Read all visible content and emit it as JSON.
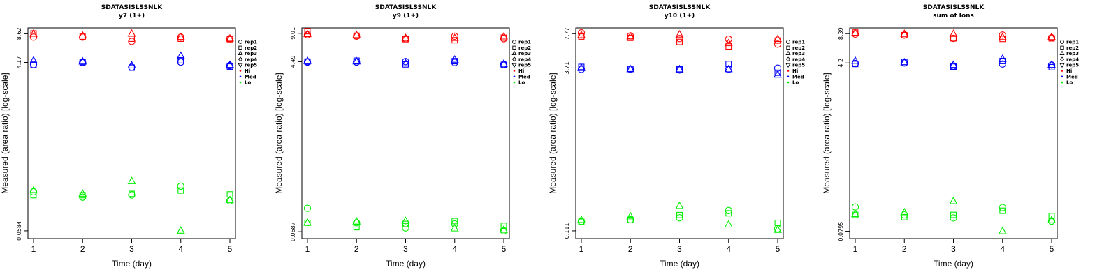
{
  "chart_data": [
    {
      "type": "scatter",
      "title": "SDATASISLSSNLK",
      "subtitle": "y7 (1+)",
      "xlabel": "Time (day)",
      "ylabel": "Measured (area ratio) [log-scale]",
      "x_ticks": [
        "1",
        "2",
        "3",
        "4",
        "5"
      ],
      "y_ticks": [
        0.0584,
        4.17,
        8.62
      ],
      "y_tick_labels": [
        "0.0584",
        "4.17",
        "8.62"
      ],
      "ylim": [
        0.048,
        10.0
      ],
      "log_scale_y": true,
      "legend_position": "right",
      "legend": [
        "rep1",
        "rep2",
        "rep3",
        "rep4",
        "rep5",
        "Hi",
        "Med",
        "Lo"
      ],
      "colors": {
        "Hi": "#ff0000",
        "Med": "#0000ff",
        "Lo": "#00ee00"
      },
      "markers": {
        "rep1": "circle",
        "rep2": "square",
        "rep3": "triangle",
        "rep4": "diamond",
        "rep5": "triangle-down"
      },
      "series": [
        {
          "level": "Hi",
          "rep": "rep1",
          "x": [
            1,
            2,
            3,
            4,
            5
          ],
          "y": [
            7.9,
            7.9,
            7.1,
            7.9,
            7.6
          ]
        },
        {
          "level": "Hi",
          "rep": "rep2",
          "x": [
            1,
            2,
            3,
            4,
            5
          ],
          "y": [
            8.7,
            8.0,
            7.6,
            7.6,
            7.5
          ]
        },
        {
          "level": "Hi",
          "rep": "rep3",
          "x": [
            1,
            2,
            3,
            4,
            5
          ],
          "y": [
            8.6,
            8.2,
            8.6,
            7.9,
            7.6
          ]
        },
        {
          "level": "Med",
          "rep": "rep1",
          "x": [
            1,
            2,
            3,
            4,
            5
          ],
          "y": [
            3.95,
            4.15,
            3.7,
            4.2,
            3.85
          ]
        },
        {
          "level": "Med",
          "rep": "rep2",
          "x": [
            1,
            2,
            3,
            4,
            5
          ],
          "y": [
            3.9,
            4.2,
            3.65,
            4.4,
            3.75
          ]
        },
        {
          "level": "Med",
          "rep": "rep3",
          "x": [
            1,
            2,
            3,
            4,
            5
          ],
          "y": [
            4.35,
            4.25,
            3.85,
            4.9,
            3.9
          ]
        },
        {
          "level": "Lo",
          "rep": "rep1",
          "x": [
            1,
            2,
            3,
            4,
            5
          ],
          "y": [
            0.157,
            0.137,
            0.145,
            0.181,
            0.125
          ]
        },
        {
          "level": "Lo",
          "rep": "rep2",
          "x": [
            1,
            2,
            3,
            4,
            5
          ],
          "y": [
            0.144,
            0.144,
            0.149,
            0.162,
            0.147
          ]
        },
        {
          "level": "Lo",
          "rep": "rep3",
          "x": [
            1,
            2,
            3,
            4,
            5
          ],
          "y": [
            0.162,
            0.149,
            0.205,
            0.0584,
            0.127
          ]
        }
      ]
    },
    {
      "type": "scatter",
      "title": "SDATASISLSSNLK",
      "subtitle": "y9 (1+)",
      "xlabel": "Time (day)",
      "ylabel": "Measured (area ratio) [log-scale]",
      "x_ticks": [
        "1",
        "2",
        "3",
        "4",
        "5"
      ],
      "y_ticks": [
        0.0687,
        4.49,
        9.01
      ],
      "y_tick_labels": [
        "0.0687",
        "4.49",
        "9.01"
      ],
      "ylim": [
        0.058,
        10.3
      ],
      "log_scale_y": true,
      "legend_position": "right",
      "legend": [
        "rep1",
        "rep2",
        "rep3",
        "rep4",
        "rep5",
        "Hi",
        "Med",
        "Lo"
      ],
      "colors": {
        "Hi": "#ff0000",
        "Med": "#0000ff",
        "Lo": "#00ee00"
      },
      "markers": {
        "rep1": "circle",
        "rep2": "square",
        "rep3": "triangle",
        "rep4": "diamond",
        "rep5": "triangle-down"
      },
      "series": [
        {
          "level": "Hi",
          "rep": "rep1",
          "x": [
            1,
            2,
            3,
            4,
            5
          ],
          "y": [
            8.7,
            8.4,
            7.9,
            8.4,
            7.9
          ]
        },
        {
          "level": "Hi",
          "rep": "rep2",
          "x": [
            1,
            2,
            3,
            4,
            5
          ],
          "y": [
            9.5,
            8.5,
            7.8,
            7.6,
            8.1
          ]
        },
        {
          "level": "Hi",
          "rep": "rep3",
          "x": [
            1,
            2,
            3,
            4,
            5
          ],
          "y": [
            8.8,
            8.6,
            8.0,
            8.0,
            8.3
          ]
        },
        {
          "level": "Med",
          "rep": "rep1",
          "x": [
            1,
            2,
            3,
            4,
            5
          ],
          "y": [
            4.45,
            4.45,
            4.5,
            4.4,
            4.2
          ]
        },
        {
          "level": "Med",
          "rep": "rep2",
          "x": [
            1,
            2,
            3,
            4,
            5
          ],
          "y": [
            4.5,
            4.6,
            4.2,
            4.55,
            4.15
          ]
        },
        {
          "level": "Med",
          "rep": "rep3",
          "x": [
            1,
            2,
            3,
            4,
            5
          ],
          "y": [
            4.55,
            4.5,
            4.3,
            4.7,
            4.25
          ]
        },
        {
          "level": "Lo",
          "rep": "rep1",
          "x": [
            1,
            2,
            3,
            4,
            5
          ],
          "y": [
            0.122,
            0.0855,
            0.0754,
            0.0831,
            0.0703
          ]
        },
        {
          "level": "Lo",
          "rep": "rep2",
          "x": [
            1,
            2,
            3,
            4,
            5
          ],
          "y": [
            0.0855,
            0.0767,
            0.0831,
            0.0891,
            0.0794
          ]
        },
        {
          "level": "Lo",
          "rep": "rep3",
          "x": [
            1,
            2,
            3,
            4,
            5
          ],
          "y": [
            0.0855,
            0.0879,
            0.0891,
            0.0741,
            0.0716
          ]
        }
      ]
    },
    {
      "type": "scatter",
      "title": "SDATASISLSSNLK",
      "subtitle": "y10 (1+)",
      "xlabel": "Time (day)",
      "ylabel": "Measured (area ratio) [log-scale]",
      "x_ticks": [
        "1",
        "2",
        "3",
        "4",
        "5"
      ],
      "y_ticks": [
        0.111,
        3.71,
        7.77
      ],
      "y_tick_labels": [
        "0.111",
        "3.71",
        "7.77"
      ],
      "ylim": [
        0.094,
        8.8
      ],
      "log_scale_y": true,
      "legend_position": "right",
      "legend": [
        "rep1",
        "rep2",
        "rep3",
        "rep4",
        "rep5",
        "Hi",
        "Med",
        "Lo"
      ],
      "colors": {
        "Hi": "#ff0000",
        "Med": "#0000ff",
        "Lo": "#00ee00"
      },
      "markers": {
        "rep1": "circle",
        "rep2": "square",
        "rep3": "triangle",
        "rep4": "diamond",
        "rep5": "triangle-down"
      },
      "series": [
        {
          "level": "Hi",
          "rep": "rep1",
          "x": [
            1,
            2,
            3,
            4,
            5
          ],
          "y": [
            7.9,
            7.4,
            7.0,
            6.9,
            6.2
          ]
        },
        {
          "level": "Hi",
          "rep": "rep2",
          "x": [
            1,
            2,
            3,
            4,
            5
          ],
          "y": [
            7.3,
            7.1,
            6.5,
            5.9,
            6.7
          ]
        },
        {
          "level": "Hi",
          "rep": "rep3",
          "x": [
            1,
            2,
            3,
            4,
            5
          ],
          "y": [
            7.5,
            7.3,
            7.6,
            6.3,
            6.9
          ]
        },
        {
          "level": "Med",
          "rep": "rep1",
          "x": [
            1,
            2,
            3,
            4,
            5
          ],
          "y": [
            3.6,
            3.6,
            3.55,
            3.6,
            3.7
          ]
        },
        {
          "level": "Med",
          "rep": "rep2",
          "x": [
            1,
            2,
            3,
            4,
            5
          ],
          "y": [
            3.8,
            3.65,
            3.6,
            4.05,
            3.35
          ]
        },
        {
          "level": "Med",
          "rep": "rep3",
          "x": [
            1,
            2,
            3,
            4,
            5
          ],
          "y": [
            3.7,
            3.6,
            3.6,
            3.6,
            3.2
          ]
        },
        {
          "level": "Lo",
          "rep": "rep1",
          "x": [
            1,
            2,
            3,
            4,
            5
          ],
          "y": [
            0.136,
            0.141,
            0.147,
            0.172,
            0.116
          ]
        },
        {
          "level": "Lo",
          "rep": "rep2",
          "x": [
            1,
            2,
            3,
            4,
            5
          ],
          "y": [
            0.135,
            0.14,
            0.156,
            0.162,
            0.132
          ]
        },
        {
          "level": "Lo",
          "rep": "rep3",
          "x": [
            1,
            2,
            3,
            4,
            5
          ],
          "y": [
            0.14,
            0.151,
            0.189,
            0.127,
            0.113
          ]
        }
      ]
    },
    {
      "type": "scatter",
      "title": "SDATASISLSSNLK",
      "subtitle": "sum of Ions",
      "xlabel": "Time (day)",
      "ylabel": "Measured (area ratio) [log-scale]",
      "x_ticks": [
        "1",
        "2",
        "3",
        "4",
        "5"
      ],
      "y_ticks": [
        0.0795,
        4.2,
        8.39
      ],
      "y_tick_labels": [
        "0.0795",
        "4.2",
        "8.39"
      ],
      "ylim": [
        0.067,
        9.6
      ],
      "log_scale_y": true,
      "legend_position": "right",
      "legend": [
        "rep1",
        "rep2",
        "rep3",
        "rep4",
        "rep5",
        "Hi",
        "Med",
        "Lo"
      ],
      "colors": {
        "Hi": "#ff0000",
        "Med": "#0000ff",
        "Lo": "#00ee00"
      },
      "markers": {
        "rep1": "circle",
        "rep2": "square",
        "rep3": "triangle",
        "rep4": "diamond",
        "rep5": "triangle-down"
      },
      "series": [
        {
          "level": "Hi",
          "rep": "rep1",
          "x": [
            1,
            2,
            3,
            4,
            5
          ],
          "y": [
            8.3,
            8.1,
            7.5,
            8.1,
            7.6
          ]
        },
        {
          "level": "Hi",
          "rep": "rep2",
          "x": [
            1,
            2,
            3,
            4,
            5
          ],
          "y": [
            8.6,
            8.1,
            7.5,
            7.4,
            7.5
          ]
        },
        {
          "level": "Hi",
          "rep": "rep3",
          "x": [
            1,
            2,
            3,
            4,
            5
          ],
          "y": [
            8.5,
            8.3,
            8.3,
            7.7,
            7.7
          ]
        },
        {
          "level": "Med",
          "rep": "rep1",
          "x": [
            1,
            2,
            3,
            4,
            5
          ],
          "y": [
            4.15,
            4.2,
            3.9,
            4.1,
            4.0
          ]
        },
        {
          "level": "Med",
          "rep": "rep2",
          "x": [
            1,
            2,
            3,
            4,
            5
          ],
          "y": [
            4.1,
            4.3,
            3.85,
            4.4,
            3.8
          ]
        },
        {
          "level": "Med",
          "rep": "rep3",
          "x": [
            1,
            2,
            3,
            4,
            5
          ],
          "y": [
            4.4,
            4.25,
            4.0,
            4.6,
            4.0
          ]
        },
        {
          "level": "Lo",
          "rep": "rep1",
          "x": [
            1,
            2,
            3,
            4,
            5
          ],
          "y": [
            0.141,
            0.117,
            0.109,
            0.139,
            0.101
          ]
        },
        {
          "level": "Lo",
          "rep": "rep2",
          "x": [
            1,
            2,
            3,
            4,
            5
          ],
          "y": [
            0.117,
            0.111,
            0.117,
            0.129,
            0.114
          ]
        },
        {
          "level": "Lo",
          "rep": "rep3",
          "x": [
            1,
            2,
            3,
            4,
            5
          ],
          "y": [
            0.119,
            0.124,
            0.161,
            0.0795,
            0.103
          ]
        }
      ]
    }
  ]
}
